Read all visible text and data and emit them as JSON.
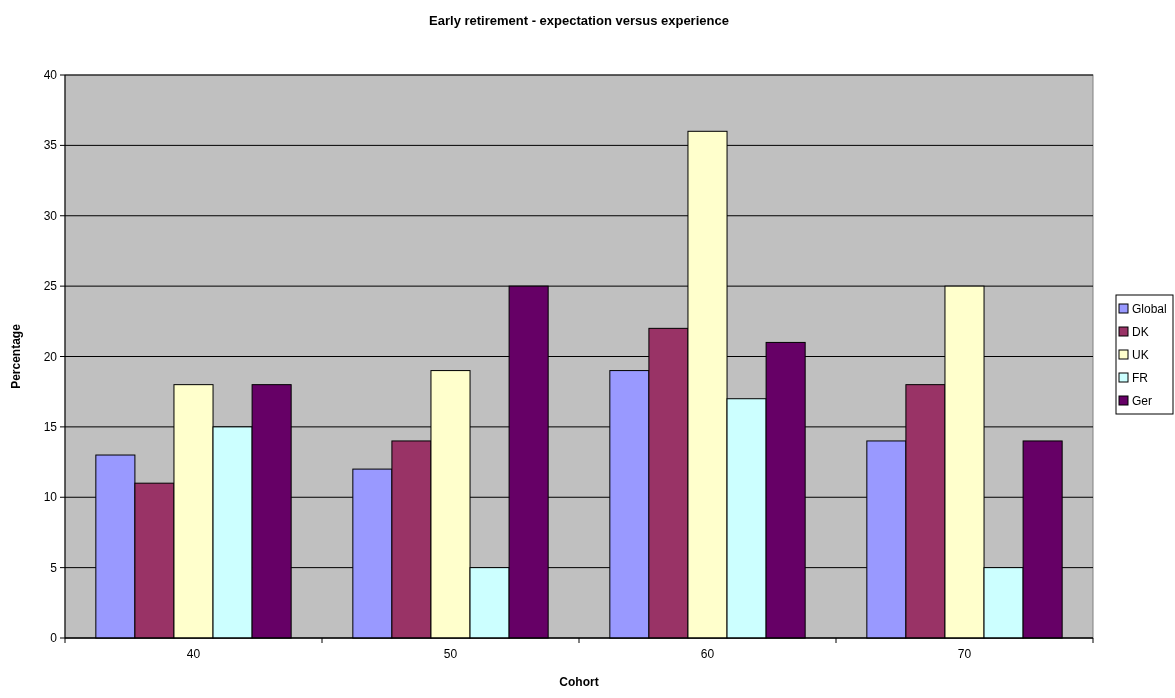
{
  "chart_data": {
    "type": "bar",
    "title": "Early retirement - expectation versus experience",
    "xlabel": "Cohort",
    "ylabel": "Percentage",
    "categories": [
      "40",
      "50",
      "60",
      "70"
    ],
    "series": [
      {
        "name": "Global",
        "color": "#9999ff",
        "values": [
          13,
          12,
          19,
          14
        ]
      },
      {
        "name": "DK",
        "color": "#993366",
        "values": [
          11,
          14,
          22,
          18
        ]
      },
      {
        "name": "UK",
        "color": "#ffffcc",
        "values": [
          18,
          19,
          36,
          25
        ]
      },
      {
        "name": "FR",
        "color": "#ccffff",
        "values": [
          15,
          5,
          17,
          5
        ]
      },
      {
        "name": "Ger",
        "color": "#660066",
        "values": [
          18,
          25,
          21,
          14
        ]
      }
    ],
    "ylim": [
      0,
      40
    ],
    "yticks": [
      0,
      5,
      10,
      15,
      20,
      25,
      30,
      35,
      40
    ],
    "grid": "y",
    "legend": "right"
  }
}
